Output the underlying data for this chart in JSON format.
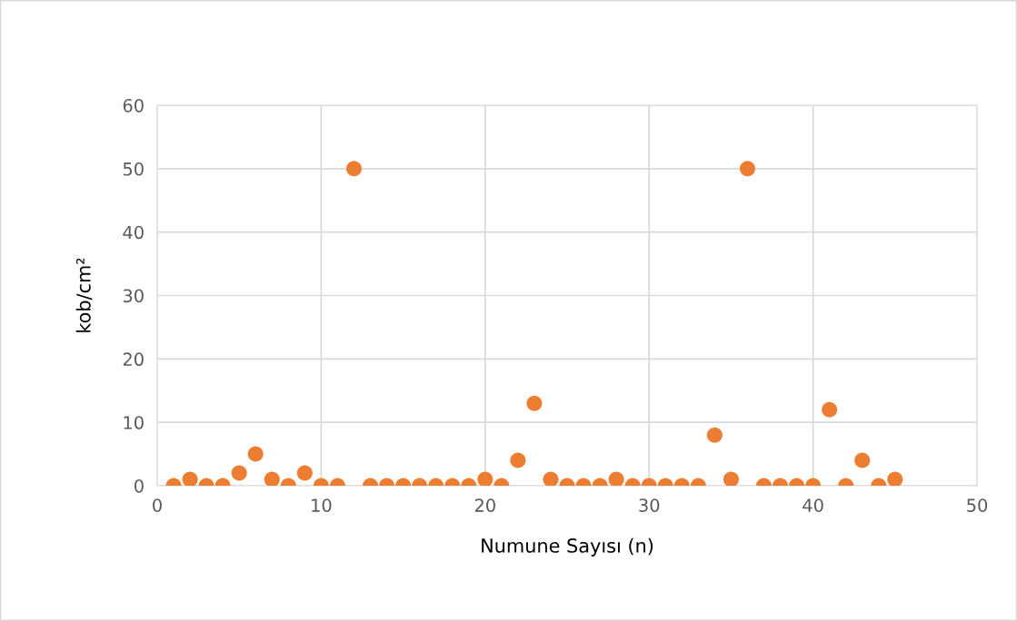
{
  "chart_data": {
    "type": "scatter",
    "xlabel": "Numune Sayısı (n)",
    "ylabel": "kob/cm²",
    "x": [
      1,
      2,
      3,
      4,
      5,
      6,
      7,
      8,
      9,
      10,
      11,
      12,
      13,
      14,
      15,
      16,
      17,
      18,
      19,
      20,
      21,
      22,
      23,
      24,
      25,
      26,
      27,
      28,
      29,
      30,
      31,
      32,
      33,
      34,
      35,
      36,
      37,
      38,
      39,
      40,
      41,
      42,
      43,
      44,
      45
    ],
    "series": [
      {
        "color": "#ed7d31",
        "values": [
          0,
          1,
          0,
          0,
          2,
          5,
          1,
          0,
          2,
          0,
          0,
          50,
          0,
          0,
          0,
          0,
          0,
          0,
          0,
          1,
          0,
          4,
          13,
          1,
          0,
          0,
          0,
          1,
          0,
          0,
          0,
          0,
          0,
          8,
          1,
          50,
          0,
          0,
          0,
          0,
          12,
          0,
          4,
          0,
          1
        ]
      }
    ],
    "xlim": [
      0,
      50
    ],
    "xticks": [
      0,
      10,
      20,
      30,
      40,
      50
    ],
    "ylim": [
      0,
      60
    ],
    "yticks": [
      0,
      10,
      20,
      30,
      40,
      50,
      60
    ],
    "grid": true,
    "marker": "circle",
    "legend": false
  }
}
